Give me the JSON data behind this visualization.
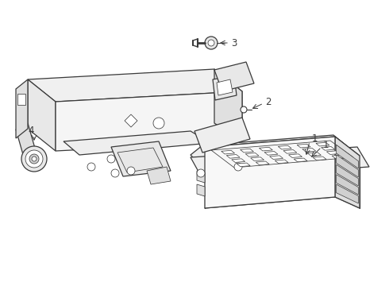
{
  "background_color": "#ffffff",
  "line_color": "#3a3a3a",
  "lw_main": 0.9,
  "lw_thin": 0.55,
  "figsize": [
    4.9,
    3.6
  ],
  "dpi": 100,
  "xlim": [
    0,
    490
  ],
  "ylim": [
    0,
    360
  ]
}
